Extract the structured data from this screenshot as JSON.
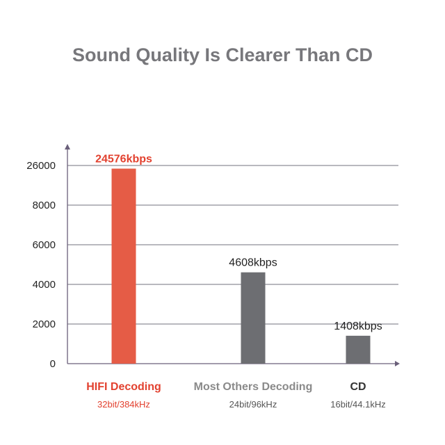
{
  "colors": {
    "accent": "#e55c46",
    "accent_text": "#e2412f",
    "bar_gray": "#6d6e72",
    "title": "#77777b",
    "axis": "#6a5f7a",
    "grid": "#8d8d97"
  },
  "chart_data": {
    "type": "bar",
    "title": "Sound Quality Is Clearer Than CD",
    "xlabel": "",
    "ylabel": "",
    "ytick_labels": [
      "0",
      "2000",
      "4000",
      "6000",
      "8000",
      "26000"
    ],
    "categories": [
      "HIFI Decoding",
      "Most Others Decoding",
      "CD"
    ],
    "subcategories": [
      "32bit/384kHz",
      "24bit/96kHz",
      "16bit/44.1kHz"
    ],
    "values": [
      24576,
      4608,
      1408
    ],
    "value_labels": [
      "24576kbps",
      "4608kbps",
      "1408kbps"
    ],
    "grid": true,
    "legend": "none"
  }
}
